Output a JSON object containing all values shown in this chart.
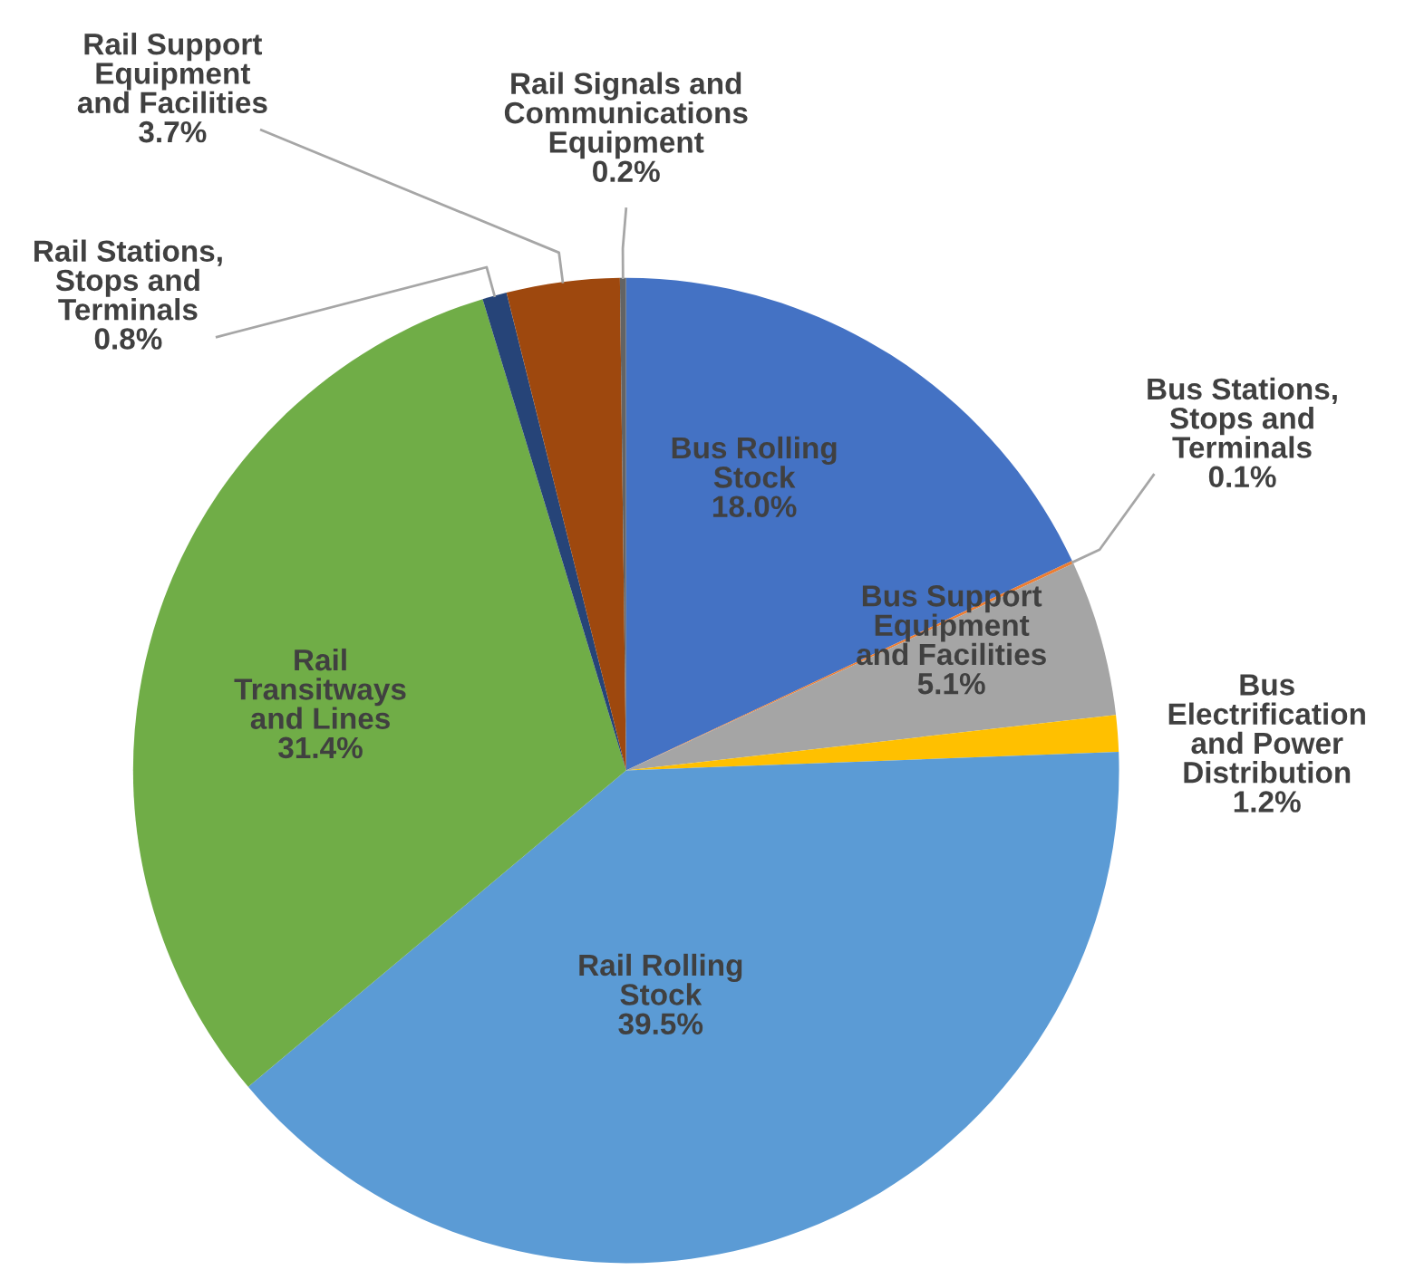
{
  "chart_data": {
    "type": "pie",
    "categories": [
      "Bus Rolling\nStock",
      "Bus Stations,\nStops and\nTerminals",
      "Bus Support\nEquipment\nand Facilities",
      "Bus\nElectrification\nand Power\nDistribution",
      "Rail Rolling\nStock",
      "Rail\nTransitways\nand Lines",
      "Rail Stations,\nStops and\nTerminals",
      "Rail Support\nEquipment\nand Facilities",
      "Rail Signals and\nCommunications\nEquipment"
    ],
    "values": [
      18.0,
      0.1,
      5.1,
      1.2,
      39.5,
      31.4,
      0.8,
      3.7,
      0.2
    ],
    "colors": [
      "#4472c4",
      "#ed7d31",
      "#a5a5a5",
      "#ffc000",
      "#5b9bd5",
      "#70ad47",
      "#264478",
      "#9e480e",
      "#636363"
    ],
    "value_labels": [
      "18.0%",
      "0.1%",
      "5.1%",
      "1.2%",
      "39.5%",
      "31.4%",
      "0.8%",
      "3.7%",
      "0.2%"
    ]
  }
}
